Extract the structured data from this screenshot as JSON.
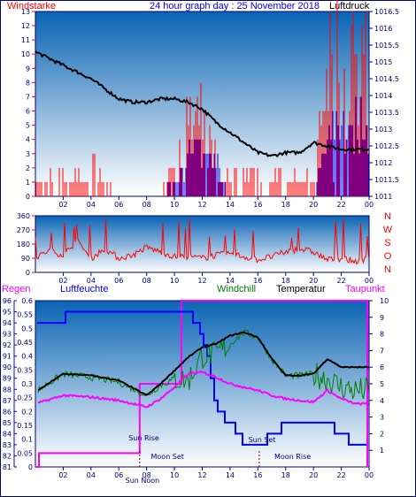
{
  "header": {
    "title": "24 hour graph day : 25 November 2018",
    "left_label": "Windstarke",
    "right_label": "Luftdruck"
  },
  "colors": {
    "frame": "#000080",
    "wind": "#ff0000",
    "gust": "#0000ff",
    "pressure": "#000000",
    "humidity": "#0000ff",
    "windchill": "#008000",
    "temperature": "#000000",
    "dewpoint": "#ff00ff",
    "rain": "#ff00ff",
    "sun_label": "#800000"
  },
  "x_ticks": [
    "02",
    "04",
    "06",
    "08",
    "10",
    "12",
    "14",
    "16",
    "18",
    "20",
    "22",
    "00"
  ],
  "wind_panel": {
    "left_ticks": [
      "0",
      "1",
      "2",
      "3",
      "4",
      "5",
      "6",
      "7",
      "8",
      "9",
      "10",
      "11",
      "12",
      "13"
    ],
    "right_ticks": [
      "1011",
      "1011.5",
      "1012",
      "1012.5",
      "1013",
      "1013.5",
      "1014",
      "1014.5",
      "1015",
      "1015.5",
      "1016",
      "1016.5"
    ]
  },
  "direction_panel": {
    "left_ticks": [
      "0",
      "90",
      "180",
      "270",
      "360"
    ],
    "right_letters": [
      "N",
      "W",
      "S",
      "O",
      "N"
    ]
  },
  "temp_panel": {
    "labels": {
      "rain": "Regen",
      "humidity": "Luftfeuchte",
      "windchill": "Windchill",
      "temperature": "Temperatur",
      "dewpoint": "Taupunkt"
    },
    "humidity_ticks": [
      "81",
      "82",
      "83",
      "84",
      "85",
      "86",
      "87",
      "88",
      "89",
      "90",
      "91",
      "92",
      "93",
      "94",
      "95",
      "96"
    ],
    "rain_ticks": [
      "0",
      "0.05",
      "0.1",
      "0.15",
      "0.2",
      "0.25",
      "0.3",
      "0.35",
      "0.4",
      "0.45",
      "0.5",
      "0.55",
      "0.6"
    ],
    "temp_ticks": [
      "1",
      "2",
      "3",
      "4",
      "5",
      "6",
      "7",
      "8",
      "9",
      "10"
    ],
    "annotations": {
      "sun_rise": "Sun Rise",
      "sun_set": "Sun Set",
      "moon_set": "Moon Set",
      "moon_rise": "Moon Rise",
      "sun_noon": "Sun Noon"
    }
  },
  "chart_data": [
    {
      "type": "line",
      "title": "24 hour graph day : 25 November 2018",
      "ylabel": "Windstarke",
      "y2label": "Luftdruck",
      "x_unit": "hour",
      "ylim": [
        0,
        13
      ],
      "y2lim": [
        1011,
        1016.5
      ],
      "series": [
        {
          "name": "Luftdruck",
          "x": [
            0,
            1,
            2,
            3,
            4,
            5,
            6,
            7,
            8,
            9,
            10,
            11,
            12,
            13,
            14,
            15,
            16,
            17,
            18,
            19,
            20,
            21,
            22,
            23,
            24
          ],
          "values": [
            1015.3,
            1015.1,
            1014.9,
            1014.7,
            1014.5,
            1014.2,
            1013.9,
            1013.8,
            1013.8,
            1013.9,
            1013.9,
            1013.8,
            1013.6,
            1013.2,
            1012.9,
            1012.6,
            1012.3,
            1012.2,
            1012.3,
            1012.3,
            1012.6,
            1012.5,
            1012.4,
            1012.4,
            1012.4
          ]
        },
        {
          "name": "",
          "x": [
            0,
            1,
            2,
            3,
            4,
            5,
            6,
            7,
            8,
            9,
            10,
            11,
            12,
            13,
            14,
            15,
            16,
            17,
            18,
            19,
            20,
            21,
            22,
            23,
            24
          ],
          "values": [
            1.5,
            1,
            2,
            1,
            2,
            1,
            0,
            0,
            0,
            0,
            3,
            5,
            5,
            4,
            1,
            2,
            1,
            1,
            2,
            1,
            1,
            8,
            10,
            9,
            10
          ]
        },
        {
          "name": "",
          "x": [
            0,
            1,
            2,
            3,
            4,
            5,
            6,
            7,
            8,
            9,
            10,
            11,
            12,
            13,
            14,
            15,
            16,
            17,
            18,
            19,
            20,
            21,
            22,
            23,
            24
          ],
          "values": [
            0,
            0,
            0,
            0,
            0,
            0,
            0,
            0,
            0,
            0,
            1,
            3,
            3,
            2,
            0,
            0,
            0,
            0,
            0,
            0,
            0,
            5,
            5,
            5,
            5
          ]
        }
      ]
    },
    {
      "type": "line",
      "ylabel": "",
      "x_unit": "hour",
      "ylim": [
        0,
        360
      ],
      "series": [
        {
          "name": "",
          "x": [
            0,
            1,
            2,
            3,
            4,
            5,
            6,
            7,
            8,
            9,
            10,
            11,
            12,
            13,
            14,
            15,
            16,
            17,
            18,
            19,
            20,
            21,
            22,
            23,
            24
          ],
          "values": [
            90,
            140,
            110,
            200,
            90,
            150,
            90,
            110,
            160,
            130,
            100,
            100,
            90,
            110,
            120,
            100,
            80,
            100,
            130,
            150,
            130,
            80,
            90,
            70,
            90
          ]
        }
      ]
    },
    {
      "type": "line",
      "ylabel": "Luftfeuchte",
      "y2label": "Temperatur",
      "x_unit": "hour",
      "ylim": [
        81,
        96
      ],
      "y2lim": [
        1,
        10
      ],
      "rain_lim": [
        0,
        0.6
      ],
      "series": [
        {
          "name": "Luftfeuchte",
          "x": [
            0,
            2,
            4,
            6,
            8,
            9,
            10,
            11,
            12,
            13,
            14,
            15,
            16,
            17,
            18,
            19,
            20,
            21,
            22,
            23,
            24
          ],
          "values": [
            94,
            94.5,
            94.8,
            95,
            95,
            95.2,
            95.2,
            94.8,
            93,
            86,
            85,
            83,
            83,
            84,
            85,
            85,
            85,
            85,
            84,
            83,
            83
          ]
        },
        {
          "name": "Temperatur",
          "x": [
            0,
            2,
            4,
            6,
            8,
            9,
            10,
            11,
            12,
            13,
            14,
            15,
            16,
            17,
            18,
            19,
            20,
            21,
            22,
            23,
            24
          ],
          "values": [
            4.5,
            5.6,
            5.5,
            5.2,
            4.3,
            5,
            5.8,
            6.6,
            7.2,
            7.4,
            7.9,
            8.1,
            7.8,
            6.5,
            5.5,
            5.5,
            5.6,
            6.5,
            6,
            6,
            6
          ]
        },
        {
          "name": "Windchill",
          "x": [
            0,
            2,
            4,
            6,
            8,
            9,
            10,
            11,
            12,
            13,
            14,
            15,
            16,
            17,
            18,
            19,
            20,
            21,
            22,
            23,
            24
          ],
          "values": [
            4.5,
            5.6,
            5.4,
            5.1,
            4.3,
            4.9,
            5.3,
            5.2,
            6.7,
            6.8,
            7.4,
            8.1,
            7.8,
            6.5,
            5.5,
            5.5,
            5.6,
            5.3,
            4.8,
            4.6,
            4.6
          ]
        },
        {
          "name": "Taupunkt",
          "x": [
            0,
            2,
            4,
            6,
            8,
            9,
            10,
            11,
            12,
            13,
            14,
            15,
            16,
            17,
            18,
            19,
            20,
            21,
            22,
            23,
            24
          ],
          "values": [
            3.8,
            4.3,
            4.2,
            4,
            3.6,
            4.1,
            4.8,
            5.6,
            5.7,
            5.4,
            5,
            4.8,
            4.6,
            4.3,
            4.1,
            4,
            3.9,
            4.6,
            4.1,
            3.8,
            3.8
          ]
        },
        {
          "name": "Regen",
          "x": [
            0,
            7.5,
            10.5,
            24
          ],
          "values": [
            0.05,
            0.3,
            0.6,
            0.6
          ]
        }
      ],
      "annotations": [
        {
          "text": "Sun Rise",
          "x": 7.8
        },
        {
          "text": "Sun Noon",
          "x": 12.1
        },
        {
          "text": "Sun Set",
          "x": 16.3
        },
        {
          "text": "Moon Set",
          "x": 9.5
        },
        {
          "text": "Moon Rise",
          "x": 18.5
        }
      ]
    }
  ]
}
